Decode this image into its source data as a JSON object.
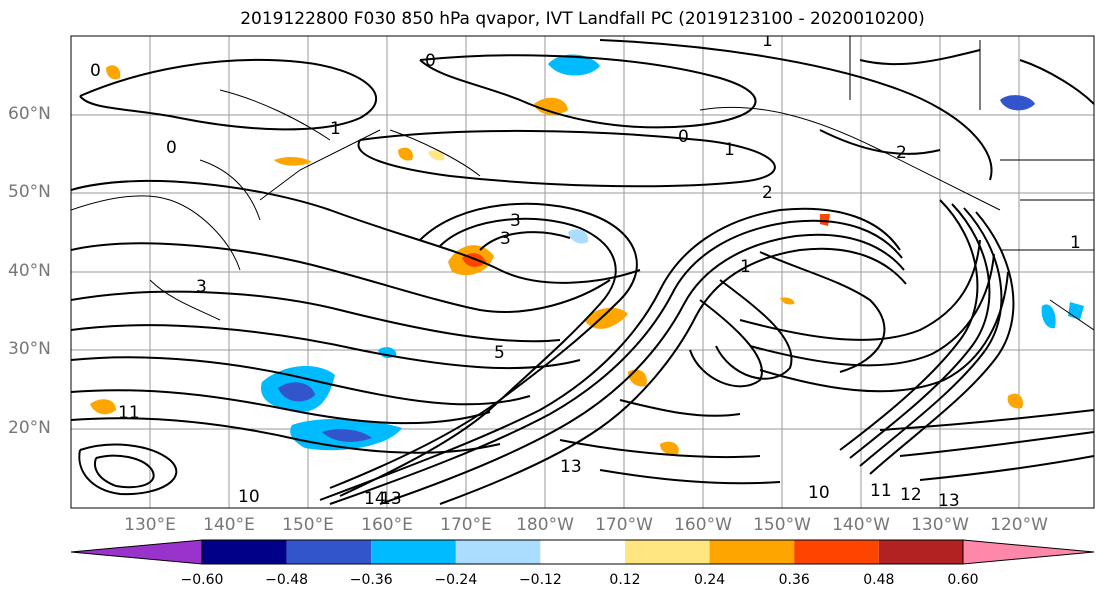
{
  "title": "2019122800 F030 850 hPa qvapor, IVT Landfall PC (2019123100 - 2020010200)",
  "lat_labels": [
    "60°N",
    "50°N",
    "40°N",
    "30°N",
    "20°N"
  ],
  "lon_labels": [
    "130°E",
    "140°E",
    "150°E",
    "160°E",
    "170°E",
    "180°W",
    "170°W",
    "160°W",
    "150°W",
    "140°W",
    "130°W",
    "120°W"
  ],
  "colorbar": {
    "colors": [
      "#9933cc",
      "#000088",
      "#3355cc",
      "#00bbff",
      "#aaddff",
      "#ffffff",
      "#ffe680",
      "#ffa500",
      "#ff4400",
      "#b22222",
      "#ff88aa"
    ],
    "tick_labels": [
      "−0.60",
      "−0.48",
      "−0.36",
      "−0.24",
      "−0.12",
      "0.12",
      "0.24",
      "0.36",
      "0.48",
      "0.60"
    ]
  },
  "contour_labels": [
    "0",
    "0",
    "0",
    "0",
    "1",
    "1",
    "1",
    "1",
    "1",
    "2",
    "2",
    "3",
    "3",
    "3",
    "5",
    "10",
    "10",
    "11",
    "11",
    "12",
    "13",
    "13",
    "13",
    "14"
  ]
}
